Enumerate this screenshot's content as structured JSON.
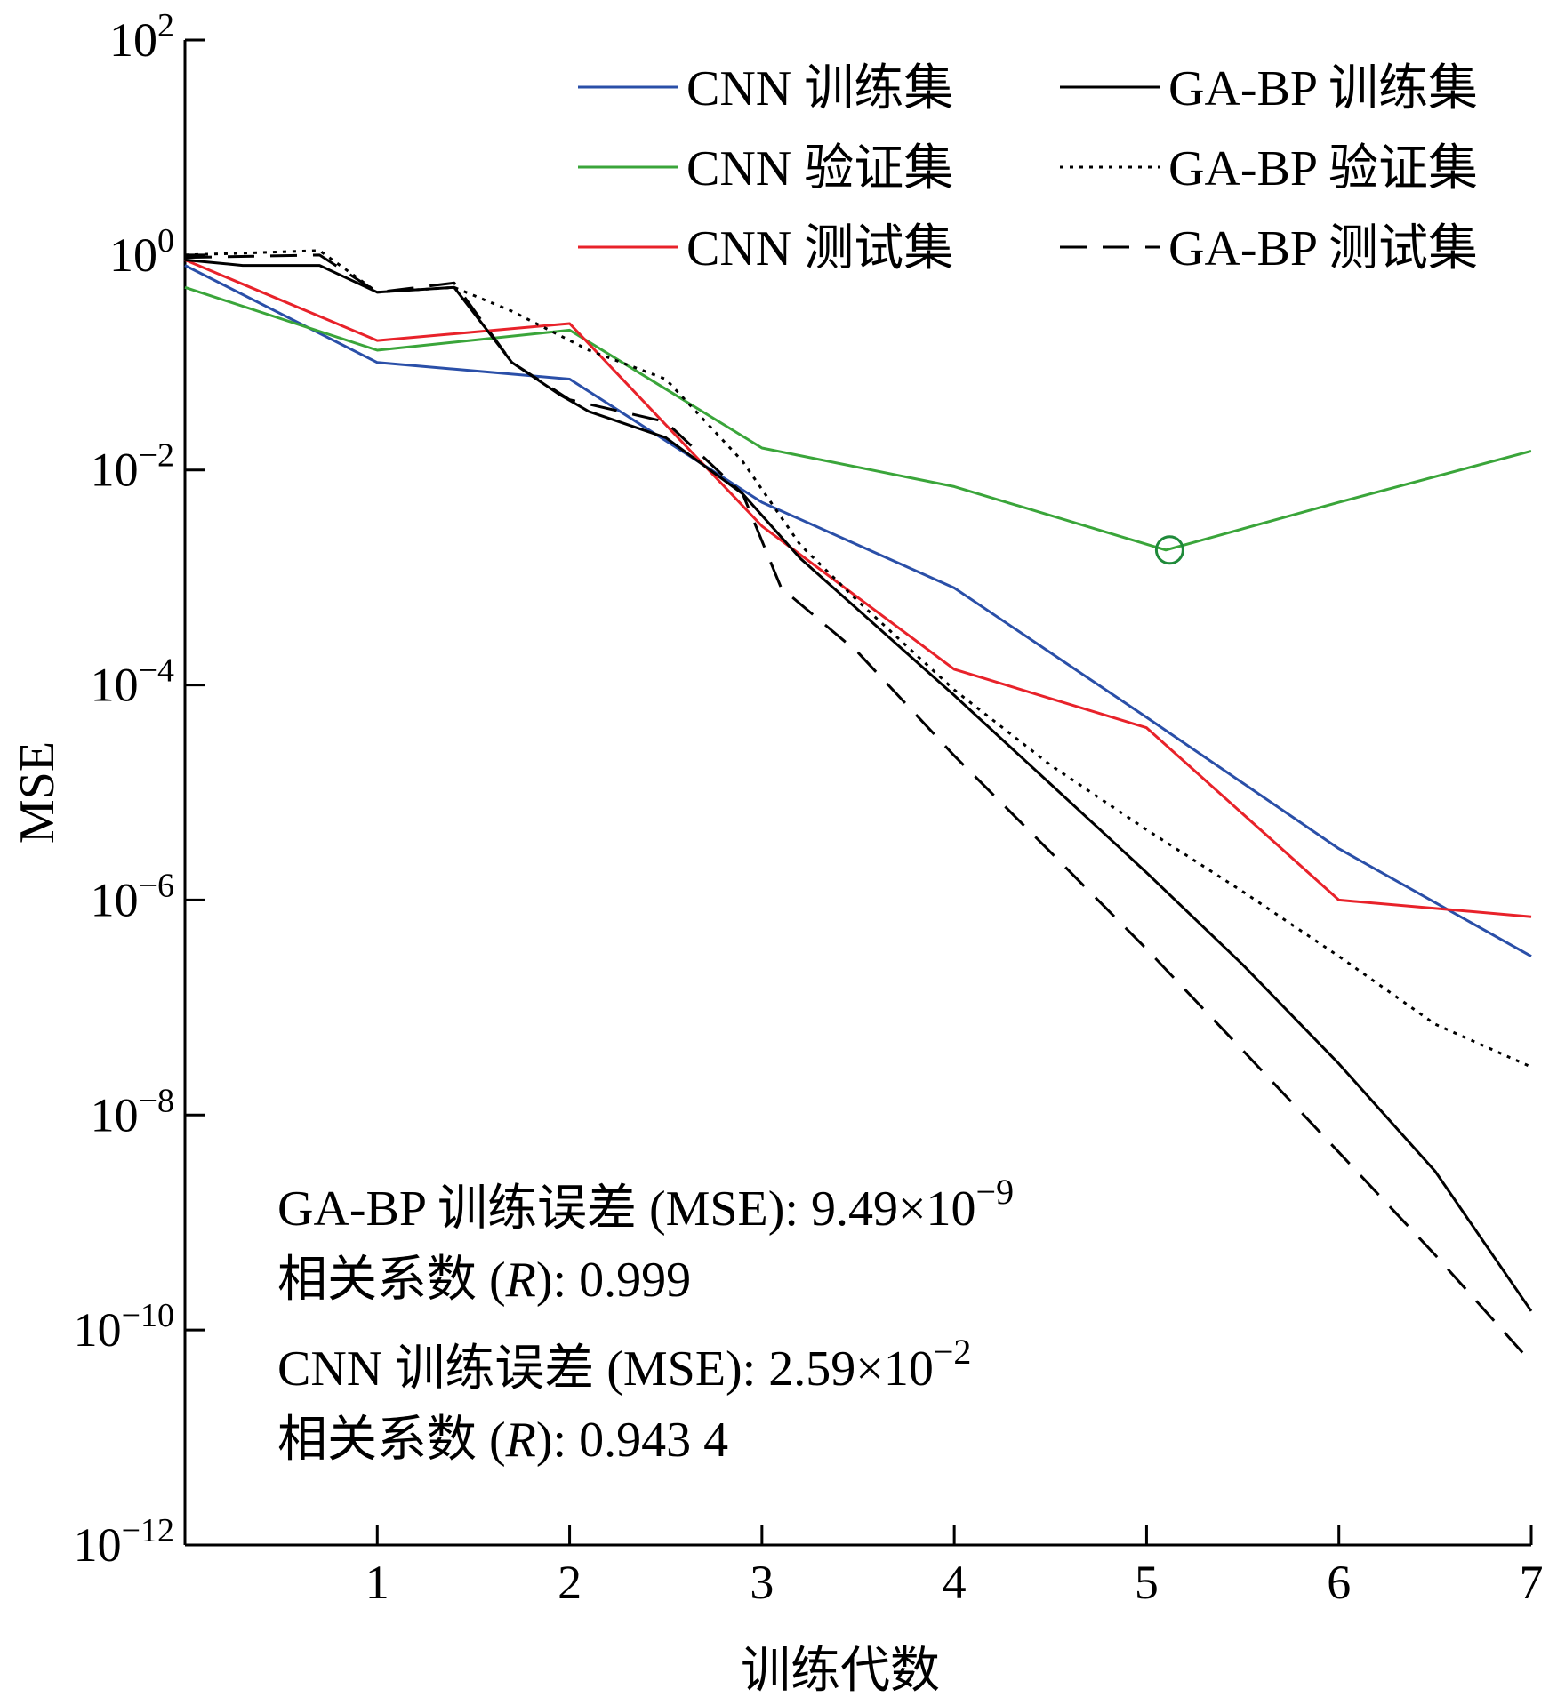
{
  "chart_data": {
    "type": "line",
    "ylabel": "MSE",
    "xlabel": "训练代数",
    "yscale": "log",
    "xlim": [
      0,
      7
    ],
    "ylim_exp": [
      -12,
      2
    ],
    "xticks": [
      1,
      2,
      3,
      4,
      5,
      6,
      7
    ],
    "xtick_labels": [
      "1",
      "2",
      "3",
      "4",
      "5",
      "6",
      "7"
    ],
    "yticks": [
      {
        "base": "10",
        "exp": "2",
        "value_exp": 2
      },
      {
        "base": "10",
        "exp": "0",
        "value_exp": 0
      },
      {
        "base": "10",
        "exp": "−2",
        "value_exp": -2
      },
      {
        "base": "10",
        "exp": "−4",
        "value_exp": -4
      },
      {
        "base": "10",
        "exp": "−6",
        "value_exp": -6
      },
      {
        "base": "10",
        "exp": "−8",
        "value_exp": -8
      },
      {
        "base": "10",
        "exp": "−10",
        "value_exp": -10
      },
      {
        "base": "10",
        "exp": "−12",
        "value_exp": -12
      }
    ],
    "series": [
      {
        "name": "CNN 训练集",
        "color": "#2a4fa8",
        "style": "solid",
        "x": [
          0,
          1,
          2,
          3,
          4,
          5,
          6,
          7
        ],
        "y": [
          0.8,
          0.1,
          0.07,
          0.005,
          0.0008,
          5e-05,
          3e-06,
          3e-07
        ]
      },
      {
        "name": "CNN 验证集",
        "color": "#3aa53a",
        "style": "solid",
        "x": [
          0,
          1,
          2,
          3,
          4,
          5.1,
          6,
          7
        ],
        "y": [
          0.5,
          0.13,
          0.2,
          0.016,
          0.007,
          0.0018,
          0.005,
          0.015
        ]
      },
      {
        "name": "CNN 测试集",
        "color": "#e8222a",
        "style": "solid",
        "x": [
          0,
          1,
          2,
          3,
          4,
          5,
          6,
          7
        ],
        "y": [
          0.9,
          0.16,
          0.23,
          0.003,
          0.00014,
          4e-05,
          1e-06,
          7e-07
        ]
      },
      {
        "name": "GA-BP 训练集",
        "color": "#000000",
        "style": "solid",
        "x": [
          0,
          0.3,
          0.7,
          1,
          1.4,
          1.7,
          1.95,
          2.1,
          2.5,
          2.9,
          3.2,
          3.5,
          4.0,
          4.5,
          5.0,
          5.5,
          6.0,
          6.5,
          7.0
        ],
        "y": [
          0.9,
          0.8,
          0.8,
          0.45,
          0.5,
          0.1,
          0.05,
          0.035,
          0.02,
          0.006,
          0.0015,
          0.0005,
          8e-05,
          1.2e-05,
          1.8e-06,
          2.5e-07,
          3e-08,
          3e-09,
          1.5e-10
        ]
      },
      {
        "name": "GA-BP 验证集",
        "color": "#000000",
        "style": "dotted",
        "x": [
          0,
          0.7,
          1,
          1.4,
          1.7,
          2.1,
          2.5,
          2.9,
          3.2,
          3.5,
          4.0,
          4.5,
          5.0,
          5.5,
          6.0,
          6.5,
          7.0
        ],
        "y": [
          1.0,
          1.1,
          0.45,
          0.5,
          0.3,
          0.13,
          0.07,
          0.012,
          0.002,
          0.0006,
          9e-05,
          1.8e-05,
          4.5e-06,
          1.2e-06,
          3e-07,
          7e-08,
          2.8e-08
        ]
      },
      {
        "name": "GA-BP 测试集",
        "color": "#000000",
        "style": "dashed",
        "x": [
          0,
          0.7,
          1,
          1.4,
          1.7,
          2.0,
          2.5,
          2.9,
          3.1,
          3.5,
          4.0,
          4.5,
          5.0,
          5.5,
          6.0,
          6.5,
          7.0
        ],
        "y": [
          0.95,
          1.0,
          0.45,
          0.55,
          0.1,
          0.045,
          0.028,
          0.006,
          0.0008,
          0.0002,
          2.2e-05,
          2.8e-06,
          3.5e-07,
          4e-08,
          4.5e-09,
          5e-10,
          5e-11
        ]
      }
    ],
    "marker": {
      "x": 5.12,
      "y": 0.0018,
      "series": "CNN 验证集",
      "shape": "circle"
    },
    "legend": {
      "placement": "top-right",
      "entries": [
        "CNN 训练集",
        "CNN 验证集",
        "CNN 测试集",
        "GA-BP 训练集",
        "GA-BP 验证集",
        "GA-BP 测试集"
      ]
    },
    "annotations": [
      {
        "text": "GA-BP 训练误差 (MSE): 9.49×10",
        "sup": "−9"
      },
      {
        "text_pre": "相关系数 (",
        "italic": "R",
        "text_post": "): 0.999"
      },
      {
        "text": "CNN 训练误差 (MSE): 2.59×10",
        "sup": "−2"
      },
      {
        "text_pre": "相关系数 (",
        "italic": "R",
        "text_post": "): 0.943 4"
      }
    ]
  }
}
